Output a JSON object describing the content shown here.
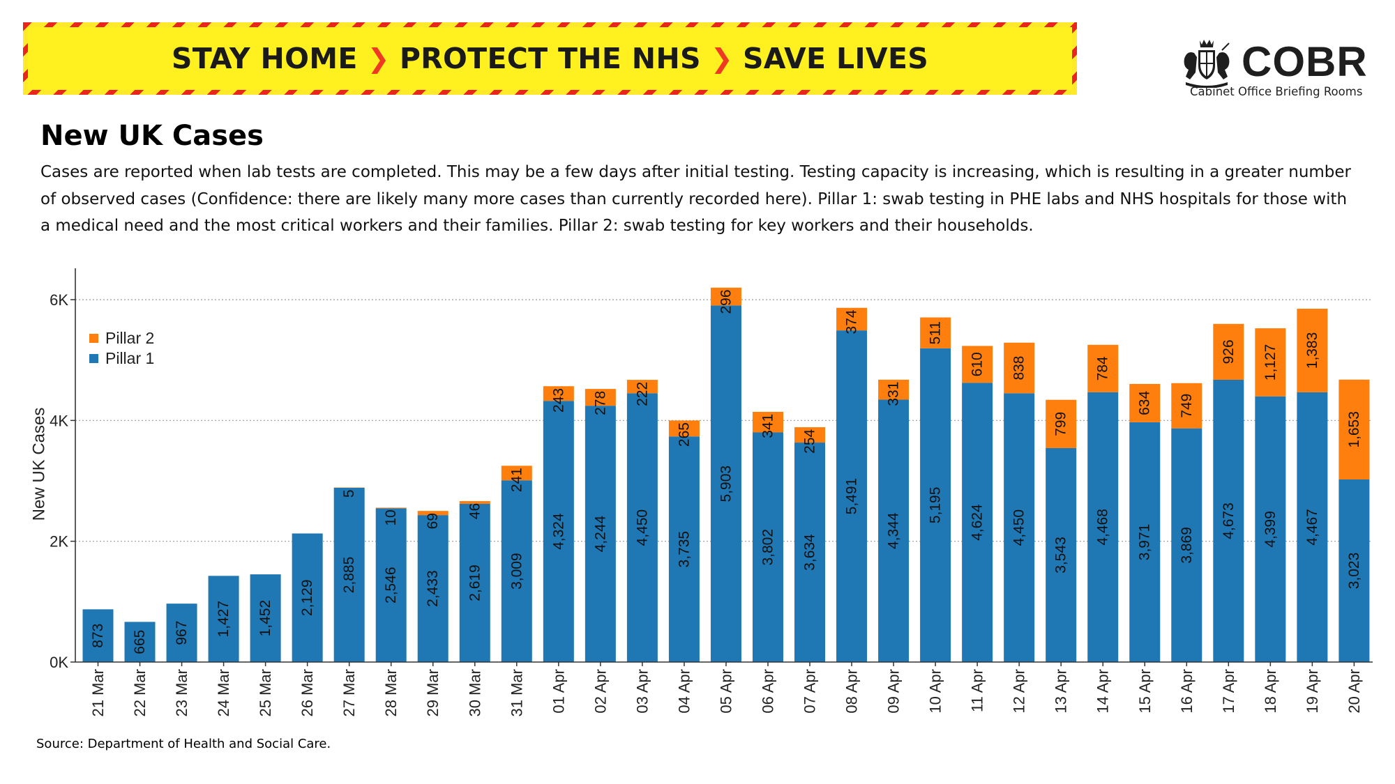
{
  "banner": {
    "part1": "STAY HOME",
    "part2": "PROTECT THE NHS",
    "part3": "SAVE LIVES",
    "separator_icon": "chevron-right-icon",
    "stripe_colors": [
      "#e8261d",
      "#ffe92b"
    ]
  },
  "logo": {
    "name": "COBR",
    "subtitle": "Cabinet Office Briefing Rooms",
    "emblem_icon": "royal-coat-of-arms-icon"
  },
  "page": {
    "title": "New UK Cases",
    "description": "Cases are reported when lab tests are completed. This may be a few days after initial testing. Testing capacity is increasing, which is resulting in a greater number of observed cases (Confidence: there are likely many more cases than currently recorded here). Pillar 1: swab testing in PHE labs and NHS hospitals for those with a medical need and the most critical workers and their families. Pillar 2: swab testing for key workers and their households.",
    "source": "Source: Department of Health and Social Care."
  },
  "chart_data": {
    "type": "bar",
    "stacked": true,
    "ylabel": "New UK Cases",
    "xlabel": "",
    "ylim": [
      0,
      6500
    ],
    "yticks": [
      0,
      2000,
      4000,
      6000
    ],
    "ytick_labels": [
      "0K",
      "2K",
      "4K",
      "6K"
    ],
    "grid": "horizontal dotted",
    "legend_position": "top-left",
    "legend": [
      "Pillar 2",
      "Pillar 1"
    ],
    "categories": [
      "21 Mar",
      "22 Mar",
      "23 Mar",
      "24 Mar",
      "25 Mar",
      "26 Mar",
      "27 Mar",
      "28 Mar",
      "29 Mar",
      "30 Mar",
      "31 Mar",
      "01 Apr",
      "02 Apr",
      "03 Apr",
      "04 Apr",
      "05 Apr",
      "06 Apr",
      "07 Apr",
      "08 Apr",
      "09 Apr",
      "10 Apr",
      "11 Apr",
      "12 Apr",
      "13 Apr",
      "14 Apr",
      "15 Apr",
      "16 Apr",
      "17 Apr",
      "18 Apr",
      "19 Apr",
      "20 Apr"
    ],
    "series": [
      {
        "name": "Pillar 1",
        "color": "#1f77b4",
        "values": [
          873,
          665,
          967,
          1427,
          1452,
          2129,
          2885,
          2546,
          2433,
          2619,
          3009,
          4324,
          4244,
          4450,
          3735,
          5903,
          3802,
          3634,
          5491,
          4344,
          5195,
          4624,
          4450,
          3543,
          4468,
          3971,
          3869,
          4673,
          4399,
          4467,
          3023
        ],
        "labels": [
          "873",
          "665",
          "967",
          "1,427",
          "1,452",
          "2,129",
          "2,885",
          "2,546",
          "2,433",
          "2,619",
          "3,009",
          "4,324",
          "4,244",
          "4,450",
          "3,735",
          "5,903",
          "3,802",
          "3,634",
          "5,491",
          "4,344",
          "5,195",
          "4,624",
          "4,450",
          "3,543",
          "4,468",
          "3,971",
          "3,869",
          "4,673",
          "4,399",
          "4,467",
          "3,023"
        ]
      },
      {
        "name": "Pillar 2",
        "color": "#ff7f0e",
        "values": [
          0,
          0,
          0,
          0,
          0,
          0,
          5,
          10,
          69,
          46,
          241,
          243,
          278,
          222,
          265,
          296,
          341,
          254,
          374,
          331,
          511,
          610,
          838,
          799,
          784,
          634,
          749,
          926,
          1127,
          1383,
          1653
        ],
        "labels": [
          "",
          "",
          "",
          "",
          "",
          "",
          "5",
          "10",
          "69",
          "46",
          "241",
          "243",
          "278",
          "222",
          "265",
          "296",
          "341",
          "254",
          "374",
          "331",
          "511",
          "610",
          "838",
          "799",
          "784",
          "634",
          "749",
          "926",
          "1,127",
          "1,383",
          "1,653"
        ]
      }
    ]
  }
}
